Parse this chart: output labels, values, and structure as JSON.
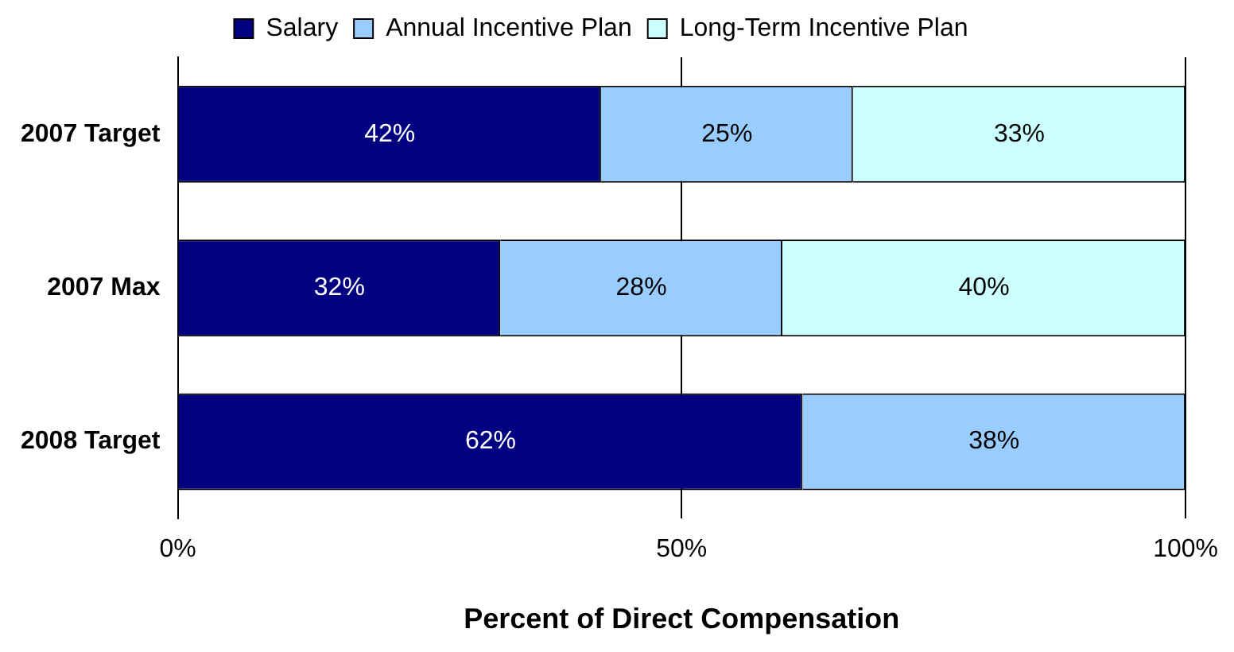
{
  "chart_data": {
    "type": "bar",
    "orientation": "horizontal",
    "stacked": true,
    "xlabel": "Percent of Direct Compensation",
    "categories": [
      "2007 Target",
      "2007 Max",
      "2008 Target"
    ],
    "series": [
      {
        "name": "Salary",
        "color": "#000080",
        "values": [
          42,
          32,
          62
        ],
        "value_labels": [
          "42%",
          "32%",
          "62%"
        ]
      },
      {
        "name": "Annual Incentive Plan",
        "color": "#99ccff",
        "values": [
          25,
          28,
          38
        ],
        "value_labels": [
          "25%",
          "28%",
          "38%"
        ]
      },
      {
        "name": "Long-Term Incentive Plan",
        "color": "#ccffff",
        "values": [
          33,
          40,
          null
        ],
        "value_labels": [
          "33%",
          "40%",
          null
        ]
      }
    ],
    "xlim": [
      0,
      100
    ],
    "xticks": [
      {
        "value": 0,
        "label": "0%"
      },
      {
        "value": 50,
        "label": "50%"
      },
      {
        "value": 100,
        "label": "100%"
      }
    ],
    "grid": "x",
    "legend": "top"
  }
}
